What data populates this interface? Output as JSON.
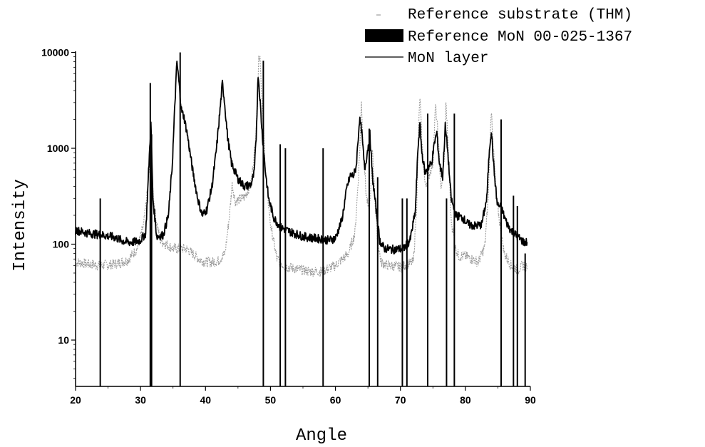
{
  "chart_data": {
    "type": "line",
    "xlabel": "Angle",
    "ylabel": "Intensity",
    "xlim": [
      20,
      90
    ],
    "ylim": [
      3.2,
      10000
    ],
    "yscale": "log",
    "x_ticks": [
      20,
      30,
      40,
      50,
      60,
      70,
      80,
      90
    ],
    "y_ticks": [
      10,
      100,
      1000,
      10000
    ],
    "legend_position": "top-right",
    "series": [
      {
        "name": "Reference substrate (THM)",
        "style": "dotted-light-gray",
        "color": "#9a9a9a",
        "points": [
          [
            20,
            65
          ],
          [
            22,
            62
          ],
          [
            24,
            60
          ],
          [
            26,
            62
          ],
          [
            28,
            68
          ],
          [
            29.5,
            90
          ],
          [
            30.5,
            160
          ],
          [
            31.2,
            450
          ],
          [
            31.5,
            800
          ],
          [
            32.2,
            220
          ],
          [
            33,
            110
          ],
          [
            35,
            90
          ],
          [
            37,
            90
          ],
          [
            39,
            70
          ],
          [
            40,
            65
          ],
          [
            41,
            65
          ],
          [
            42,
            67
          ],
          [
            43,
            80
          ],
          [
            43.7,
            200
          ],
          [
            44.1,
            420
          ],
          [
            44.6,
            280
          ],
          [
            46,
            310
          ],
          [
            47,
            420
          ],
          [
            47.6,
            1000
          ],
          [
            48,
            3000
          ],
          [
            48.2,
            9000
          ],
          [
            48.4,
            9200
          ],
          [
            48.7,
            3000
          ],
          [
            49.3,
            500
          ],
          [
            50,
            160
          ],
          [
            51,
            70
          ],
          [
            52,
            60
          ],
          [
            54,
            55
          ],
          [
            56,
            52
          ],
          [
            58,
            52
          ],
          [
            60,
            60
          ],
          [
            62,
            80
          ],
          [
            63,
            130
          ],
          [
            63.5,
            450
          ],
          [
            63.8,
            1200
          ],
          [
            64,
            3300
          ],
          [
            64.2,
            1300
          ],
          [
            64.7,
            350
          ],
          [
            65.2,
            200
          ],
          [
            65.5,
            450
          ],
          [
            65.7,
            1000
          ],
          [
            66,
            350
          ],
          [
            66.5,
            110
          ],
          [
            67,
            65
          ],
          [
            68,
            60
          ],
          [
            70,
            58
          ],
          [
            72,
            65
          ],
          [
            72.5,
            250
          ],
          [
            72.8,
            1500
          ],
          [
            73,
            3500
          ],
          [
            73.3,
            1200
          ],
          [
            73.8,
            400
          ],
          [
            74.3,
            500
          ],
          [
            75,
            700
          ],
          [
            75.4,
            2800
          ],
          [
            75.7,
            1600
          ],
          [
            76.3,
            350
          ],
          [
            76.8,
            900
          ],
          [
            77,
            3100
          ],
          [
            77.3,
            1200
          ],
          [
            77.8,
            180
          ],
          [
            78.5,
            90
          ],
          [
            79,
            75
          ],
          [
            80,
            75
          ],
          [
            81,
            70
          ],
          [
            82,
            65
          ],
          [
            83,
            95
          ],
          [
            83.5,
            300
          ],
          [
            83.8,
            1100
          ],
          [
            84,
            2600
          ],
          [
            84.3,
            1000
          ],
          [
            84.8,
            300
          ],
          [
            85.5,
            130
          ],
          [
            86,
            80
          ],
          [
            87,
            60
          ],
          [
            88,
            55
          ],
          [
            89,
            60
          ],
          [
            89.5,
            55
          ]
        ]
      },
      {
        "name": "Reference MoN 00-025-1367",
        "style": "sticks",
        "color": "#000000",
        "sticks": [
          [
            23.8,
            300
          ],
          [
            31.5,
            4800
          ],
          [
            31.7,
            1400
          ],
          [
            36.1,
            10000
          ],
          [
            48.9,
            8200
          ],
          [
            51.5,
            1100
          ],
          [
            52.3,
            1000
          ],
          [
            58.1,
            1000
          ],
          [
            65.2,
            1600
          ],
          [
            66.5,
            500
          ],
          [
            70.3,
            300
          ],
          [
            71.0,
            300
          ],
          [
            74.2,
            2300
          ],
          [
            77.1,
            300
          ],
          [
            78.3,
            2300
          ],
          [
            85.5,
            2000
          ],
          [
            87.4,
            320
          ],
          [
            88.0,
            250
          ],
          [
            89.2,
            80
          ]
        ]
      },
      {
        "name": "MoN layer",
        "style": "solid-thick-black",
        "color": "#000000",
        "points": [
          [
            20,
            140
          ],
          [
            22,
            130
          ],
          [
            24,
            125
          ],
          [
            26,
            118
          ],
          [
            27,
            110
          ],
          [
            28,
            105
          ],
          [
            29,
            105
          ],
          [
            30,
            110
          ],
          [
            30.8,
            130
          ],
          [
            31.3,
            700
          ],
          [
            31.6,
            1800
          ],
          [
            31.9,
            300
          ],
          [
            32.5,
            120
          ],
          [
            33.5,
            125
          ],
          [
            34.3,
            200
          ],
          [
            34.9,
            700
          ],
          [
            35.3,
            3000
          ],
          [
            35.6,
            8000
          ],
          [
            35.9,
            5000
          ],
          [
            36.3,
            2500
          ],
          [
            36.7,
            2100
          ],
          [
            37.2,
            1400
          ],
          [
            38,
            600
          ],
          [
            38.8,
            300
          ],
          [
            39.5,
            200
          ],
          [
            40.2,
            230
          ],
          [
            41,
            400
          ],
          [
            41.7,
            1000
          ],
          [
            42.3,
            2800
          ],
          [
            42.6,
            4800
          ],
          [
            42.9,
            3200
          ],
          [
            43.4,
            1300
          ],
          [
            44,
            700
          ],
          [
            45,
            480
          ],
          [
            46,
            400
          ],
          [
            47,
            420
          ],
          [
            47.5,
            550
          ],
          [
            47.8,
            1300
          ],
          [
            48.1,
            6000
          ],
          [
            48.3,
            4000
          ],
          [
            48.7,
            1500
          ],
          [
            49.2,
            600
          ],
          [
            49.7,
            300
          ],
          [
            50.5,
            190
          ],
          [
            51.5,
            150
          ],
          [
            53,
            135
          ],
          [
            55,
            120
          ],
          [
            57,
            115
          ],
          [
            59,
            110
          ],
          [
            60,
            115
          ],
          [
            61,
            180
          ],
          [
            61.8,
            400
          ],
          [
            62.3,
            520
          ],
          [
            62.8,
            520
          ],
          [
            63.2,
            650
          ],
          [
            63.7,
            2000
          ],
          [
            64,
            1600
          ],
          [
            64.5,
            600
          ],
          [
            65.3,
            1400
          ],
          [
            65.7,
            500
          ],
          [
            66.2,
            250
          ],
          [
            66.8,
            110
          ],
          [
            67.5,
            90
          ],
          [
            69,
            88
          ],
          [
            70.5,
            90
          ],
          [
            71.5,
            110
          ],
          [
            72.3,
            220
          ],
          [
            72.7,
            1000
          ],
          [
            73,
            1800
          ],
          [
            73.3,
            900
          ],
          [
            73.8,
            550
          ],
          [
            74.4,
            650
          ],
          [
            74.8,
            700
          ],
          [
            75.3,
            1200
          ],
          [
            75.6,
            1450
          ],
          [
            76,
            700
          ],
          [
            76.5,
            500
          ],
          [
            76.9,
            1700
          ],
          [
            77.2,
            1100
          ],
          [
            77.8,
            300
          ],
          [
            78.5,
            200
          ],
          [
            79.5,
            190
          ],
          [
            80.5,
            160
          ],
          [
            81.5,
            155
          ],
          [
            82.5,
            160
          ],
          [
            83.3,
            300
          ],
          [
            83.7,
            1000
          ],
          [
            84,
            1550
          ],
          [
            84.4,
            600
          ],
          [
            84.9,
            260
          ],
          [
            85.5,
            240
          ],
          [
            86.3,
            170
          ],
          [
            87,
            140
          ],
          [
            88,
            120
          ],
          [
            89,
            105
          ],
          [
            89.5,
            105
          ]
        ]
      }
    ]
  },
  "axes": {
    "x_tick_labels": [
      "20",
      "30",
      "40",
      "50",
      "60",
      "70",
      "80",
      "90"
    ],
    "y_tick_labels": [
      "10",
      "100",
      "1000",
      "10000"
    ]
  },
  "legend": {
    "items": [
      {
        "label": "Reference substrate (THM)",
        "swatch": "light-dash"
      },
      {
        "label": "Reference MoN 00-025-1367",
        "swatch": "filled-block"
      },
      {
        "label": "MoN layer",
        "swatch": "thin-line"
      }
    ]
  }
}
